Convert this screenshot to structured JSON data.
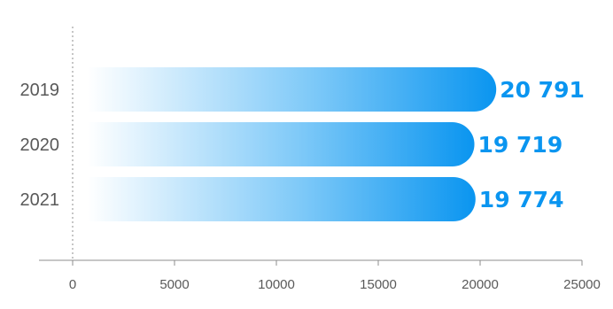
{
  "chart_data": {
    "type": "bar",
    "orientation": "horizontal",
    "categories": [
      "2019",
      "2020",
      "2021"
    ],
    "values": [
      20791,
      19719,
      19774
    ],
    "value_labels": [
      "20 791",
      "19 719",
      "19 774"
    ],
    "title": "",
    "xlabel": "",
    "ylabel": "",
    "xlim": [
      0,
      25000
    ],
    "x_ticks": [
      0,
      5000,
      10000,
      15000,
      20000,
      25000
    ],
    "x_tick_labels": [
      "0",
      "5000",
      "10000",
      "15000",
      "20000",
      "25000"
    ],
    "grid": false,
    "legend": "none",
    "colors": {
      "bar_start": "#ffffff",
      "bar_end": "#0a95f0",
      "value_label": "#0a95f0",
      "axis": "#8c8c8c",
      "text": "#595959"
    }
  }
}
